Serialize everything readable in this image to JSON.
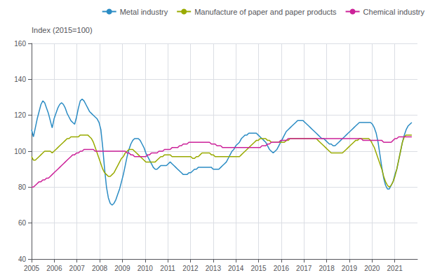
{
  "chart_data": {
    "type": "line",
    "ylabel": "Index (2015=100)",
    "x": [
      2005,
      2005.0825,
      2005.165,
      2005.2475,
      2005.33,
      2005.4126,
      2005.4951,
      2005.5776,
      2005.6601,
      2005.7426,
      2005.8251,
      2005.9076,
      2005.9901,
      2006.0727,
      2006.1552,
      2006.2377,
      2006.3202,
      2006.4027,
      2006.4852,
      2006.5677,
      2006.6502,
      2006.7328,
      2006.8153,
      2006.8978,
      2006.9803,
      2007.0628,
      2007.1453,
      2007.2278,
      2007.3103,
      2007.3929,
      2007.4754,
      2007.5579,
      2007.6404,
      2007.7229,
      2007.8054,
      2007.8879,
      2007.9704,
      2008.053,
      2008.1355,
      2008.218,
      2008.3005,
      2008.383,
      2008.4655,
      2008.548,
      2008.6305,
      2008.7131,
      2008.7956,
      2008.8781,
      2008.9606,
      2009.0431,
      2009.1256,
      2009.2081,
      2009.2906,
      2009.3732,
      2009.4557,
      2009.5382,
      2009.6207,
      2009.7032,
      2009.7857,
      2009.8682,
      2009.9507,
      2010.0333,
      2010.1158,
      2010.1983,
      2010.2808,
      2010.3633,
      2010.4458,
      2010.5283,
      2010.6108,
      2010.6933,
      2010.7759,
      2010.8584,
      2010.9409,
      2011.0234,
      2011.1059,
      2011.1884,
      2011.2709,
      2011.3534,
      2011.436,
      2011.5185,
      2011.601,
      2011.6835,
      2011.766,
      2011.8485,
      2011.931,
      2012.0135,
      2012.0961,
      2012.1786,
      2012.2611,
      2012.3436,
      2012.4261,
      2012.5086,
      2012.5911,
      2012.6736,
      2012.7562,
      2012.8387,
      2012.9212,
      2013.0037,
      2013.0862,
      2013.1687,
      2013.2512,
      2013.3337,
      2013.4163,
      2013.4988,
      2013.5813,
      2013.6638,
      2013.7463,
      2013.8288,
      2013.9113,
      2013.9938,
      2014.0764,
      2014.1589,
      2014.2414,
      2014.3239,
      2014.4064,
      2014.4889,
      2014.5714,
      2014.6539,
      2014.7365,
      2014.819,
      2014.9015,
      2014.984,
      2015.0665,
      2015.149,
      2015.2315,
      2015.314,
      2015.3966,
      2015.4791,
      2015.5616,
      2015.6441,
      2015.7266,
      2015.8091,
      2015.8916,
      2015.9741,
      2016.0567,
      2016.1392,
      2016.2217,
      2016.3042,
      2016.3867,
      2016.4692,
      2016.5517,
      2016.6342,
      2016.7167,
      2016.7993,
      2016.8818,
      2016.9643,
      2017.0468,
      2017.1293,
      2017.2118,
      2017.2943,
      2017.3768,
      2017.4594,
      2017.5419,
      2017.6244,
      2017.7069,
      2017.7894,
      2017.8719,
      2017.9544,
      2018.0369,
      2018.1195,
      2018.202,
      2018.2845,
      2018.367,
      2018.4495,
      2018.532,
      2018.6145,
      2018.697,
      2018.7796,
      2018.8621,
      2018.9446,
      2019.0271,
      2019.1096,
      2019.1921,
      2019.2746,
      2019.3571,
      2019.4397,
      2019.5222,
      2019.6047,
      2019.6872,
      2019.7697,
      2019.8522,
      2019.9347,
      2020.0172,
      2020.0998,
      2020.1823,
      2020.2648,
      2020.3473,
      2020.4298,
      2020.5123,
      2020.5948,
      2020.6773,
      2020.7599,
      2020.8424,
      2020.9249,
      2021.0074,
      2021.0899,
      2021.1724,
      2021.2549,
      2021.3374,
      2021.42,
      2021.5025,
      2021.585,
      2021.6675,
      2021.75
    ],
    "series": [
      {
        "name": "Metal industry",
        "color": "#2b8cc4",
        "values": [
          112,
          108,
          113,
          118,
          122,
          126,
          128,
          127,
          124,
          121,
          117,
          113,
          118,
          121,
          124,
          126,
          127,
          126,
          124,
          121,
          119,
          117,
          116,
          115,
          119,
          124,
          128,
          129,
          128,
          126,
          124,
          122,
          121,
          120,
          119,
          118,
          116,
          112,
          102,
          90,
          80,
          74,
          71,
          70,
          71,
          73,
          76,
          79,
          83,
          87,
          92,
          97,
          101,
          104,
          106,
          107,
          107,
          107,
          106,
          104,
          102,
          99,
          97,
          95,
          93,
          91,
          90,
          90,
          91,
          92,
          92,
          92,
          92,
          93,
          94,
          93,
          92,
          91,
          90,
          89,
          88,
          87,
          87,
          87,
          88,
          88,
          89,
          90,
          90,
          91,
          91,
          91,
          91,
          91,
          91,
          91,
          91,
          90,
          90,
          90,
          90,
          91,
          92,
          93,
          94,
          96,
          98,
          100,
          101,
          103,
          104,
          105,
          107,
          108,
          109,
          109,
          110,
          110,
          110,
          110,
          110,
          109,
          108,
          107,
          106,
          105,
          103,
          101,
          100,
          99,
          100,
          101,
          103,
          105,
          107,
          109,
          111,
          112,
          113,
          114,
          115,
          116,
          117,
          117,
          117,
          117,
          116,
          115,
          114,
          113,
          112,
          111,
          110,
          109,
          108,
          107,
          107,
          106,
          105,
          104,
          104,
          103,
          103,
          104,
          105,
          106,
          107,
          108,
          109,
          110,
          111,
          112,
          113,
          114,
          115,
          116,
          116,
          116,
          116,
          116,
          116,
          116,
          115,
          113,
          110,
          105,
          98,
          91,
          85,
          81,
          79,
          79,
          81,
          83,
          87,
          90,
          95,
          100,
          105,
          109,
          112,
          114,
          115,
          116
        ]
      },
      {
        "name": "Manufacture of paper and paper products",
        "color": "#99aa00",
        "values": [
          97,
          95,
          95,
          96,
          97,
          98,
          99,
          100,
          100,
          100,
          100,
          99,
          100,
          101,
          102,
          103,
          104,
          105,
          106,
          107,
          107,
          108,
          108,
          108,
          108,
          108,
          109,
          109,
          109,
          109,
          109,
          108,
          107,
          105,
          102,
          99,
          96,
          93,
          90,
          88,
          87,
          86,
          86,
          87,
          88,
          90,
          92,
          94,
          96,
          97,
          99,
          100,
          101,
          101,
          101,
          100,
          99,
          98,
          97,
          96,
          95,
          94,
          94,
          94,
          94,
          94,
          94,
          95,
          96,
          97,
          97,
          98,
          98,
          98,
          98,
          97,
          97,
          97,
          97,
          97,
          97,
          97,
          97,
          97,
          97,
          97,
          96,
          96,
          97,
          97,
          98,
          99,
          99,
          99,
          99,
          99,
          98,
          98,
          97,
          97,
          97,
          97,
          97,
          97,
          97,
          97,
          97,
          97,
          97,
          97,
          97,
          97,
          98,
          99,
          100,
          101,
          102,
          103,
          104,
          105,
          106,
          106,
          107,
          107,
          107,
          107,
          106,
          106,
          105,
          105,
          105,
          105,
          105,
          105,
          105,
          105,
          106,
          106,
          107,
          107,
          107,
          107,
          107,
          107,
          107,
          107,
          107,
          107,
          107,
          107,
          107,
          107,
          107,
          106,
          105,
          104,
          103,
          102,
          101,
          100,
          99,
          99,
          99,
          99,
          99,
          99,
          99,
          100,
          101,
          102,
          103,
          104,
          105,
          106,
          106,
          107,
          107,
          107,
          107,
          107,
          107,
          106,
          104,
          102,
          99,
          96,
          93,
          90,
          86,
          83,
          81,
          80,
          81,
          83,
          86,
          90,
          95,
          100,
          105,
          108,
          109,
          109,
          109,
          109
        ]
      },
      {
        "name": "Chemical industry",
        "color": "#cc2299",
        "values": [
          80,
          80,
          81,
          82,
          83,
          83,
          84,
          84,
          85,
          85,
          86,
          87,
          88,
          89,
          90,
          91,
          92,
          93,
          94,
          95,
          96,
          97,
          98,
          98,
          99,
          99,
          100,
          100,
          101,
          101,
          101,
          101,
          101,
          101,
          100,
          100,
          100,
          100,
          100,
          100,
          100,
          100,
          100,
          100,
          100,
          100,
          100,
          100,
          100,
          100,
          100,
          99,
          99,
          98,
          98,
          97,
          97,
          97,
          97,
          97,
          97,
          97,
          98,
          98,
          99,
          99,
          99,
          99,
          100,
          100,
          100,
          101,
          101,
          101,
          101,
          102,
          102,
          102,
          102,
          103,
          103,
          104,
          104,
          104,
          105,
          105,
          105,
          105,
          105,
          105,
          105,
          105,
          105,
          105,
          105,
          105,
          104,
          104,
          104,
          103,
          103,
          103,
          102,
          102,
          102,
          102,
          102,
          102,
          102,
          102,
          102,
          102,
          102,
          102,
          102,
          102,
          102,
          102,
          102,
          102,
          102,
          102,
          102,
          103,
          103,
          103,
          104,
          104,
          105,
          105,
          105,
          105,
          105,
          106,
          106,
          106,
          106,
          107,
          107,
          107,
          107,
          107,
          107,
          107,
          107,
          107,
          107,
          107,
          107,
          107,
          107,
          107,
          107,
          107,
          107,
          107,
          107,
          107,
          107,
          107,
          107,
          107,
          107,
          107,
          107,
          107,
          107,
          107,
          107,
          107,
          107,
          107,
          107,
          107,
          107,
          107,
          107,
          106,
          106,
          106,
          106,
          106,
          106,
          106,
          106,
          106,
          106,
          106,
          105,
          105,
          105,
          105,
          105,
          106,
          107,
          107,
          108,
          108,
          108,
          108,
          108,
          108,
          108,
          108
        ]
      }
    ],
    "xlim": [
      2005,
      2022
    ],
    "xticks": [
      2005,
      2006,
      2007,
      2008,
      2009,
      2010,
      2011,
      2012,
      2013,
      2014,
      2015,
      2016,
      2017,
      2018,
      2019,
      2020,
      2021
    ],
    "ylim": [
      40,
      160
    ],
    "yticks": [
      40,
      60,
      80,
      100,
      120,
      140,
      160
    ],
    "grid": true,
    "legend": "upper right"
  }
}
